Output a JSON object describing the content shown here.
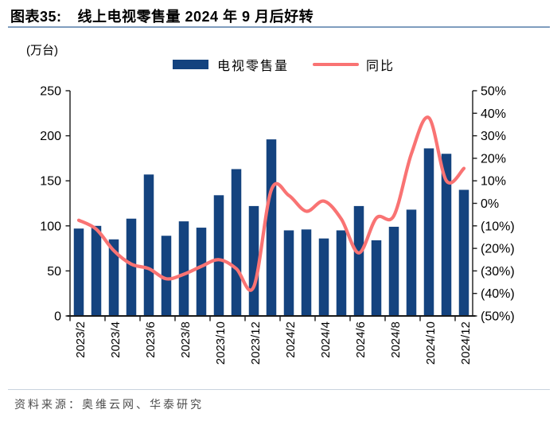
{
  "figure": {
    "label": "图表35:",
    "title": "线上电视零售量 2024 年 9 月后好转"
  },
  "unit_label": "(万台)",
  "legend": {
    "bar_label": "电视零售量",
    "line_label": "同比"
  },
  "source_text": "资料来源：奥维云网、华泰研究",
  "colors": {
    "bar": "#14437F",
    "line": "#F97373",
    "axis": "#1A1A1A",
    "title_rule": "#7F9DBE",
    "footer_rule": "#C9D3DE",
    "footer_text": "#4D4D4D"
  },
  "chart_data": {
    "type": "bar",
    "title": "线上电视零售量 2024 年 9 月后好转",
    "categories": [
      "2023/2",
      "2023/3",
      "2023/4",
      "2023/5",
      "2023/6",
      "2023/7",
      "2023/8",
      "2023/9",
      "2023/10",
      "2023/11",
      "2023/12",
      "2024/1",
      "2024/2",
      "2024/3",
      "2024/4",
      "2024/5",
      "2024/6",
      "2024/7",
      "2024/8",
      "2024/9",
      "2024/10",
      "2024/11",
      "2024/12"
    ],
    "series": [
      {
        "name": "电视零售量",
        "type": "bar",
        "axis": "left",
        "unit": "万台",
        "values": [
          97,
          100,
          85,
          108,
          157,
          89,
          105,
          98,
          134,
          163,
          122,
          196,
          95,
          96,
          86,
          95,
          122,
          84,
          99,
          118,
          186,
          180,
          140
        ]
      },
      {
        "name": "同比",
        "type": "line",
        "axis": "right",
        "unit": "%",
        "values": [
          -7.5,
          -11.5,
          -21,
          -27,
          -29,
          -33.5,
          -31.5,
          -28,
          -25,
          -29,
          -37,
          6,
          3.5,
          -3.5,
          1,
          -7,
          -22,
          -6.5,
          -5.5,
          22,
          38,
          10,
          15.5
        ]
      }
    ],
    "left_axis": {
      "title": "(万台)",
      "min": 0,
      "max": 250,
      "ticks": [
        0,
        50,
        100,
        150,
        200,
        250
      ]
    },
    "right_axis": {
      "min": -50,
      "max": 50,
      "tick_step": 10,
      "tick_labels": [
        "50%",
        "40%",
        "30%",
        "20%",
        "10%",
        "0%",
        "(10%)",
        "(20%)",
        "(30%)",
        "(40%)",
        "(50%)"
      ]
    },
    "x_label_every": 2,
    "grid": false,
    "legend_position": "top",
    "line_smoothing": true
  }
}
